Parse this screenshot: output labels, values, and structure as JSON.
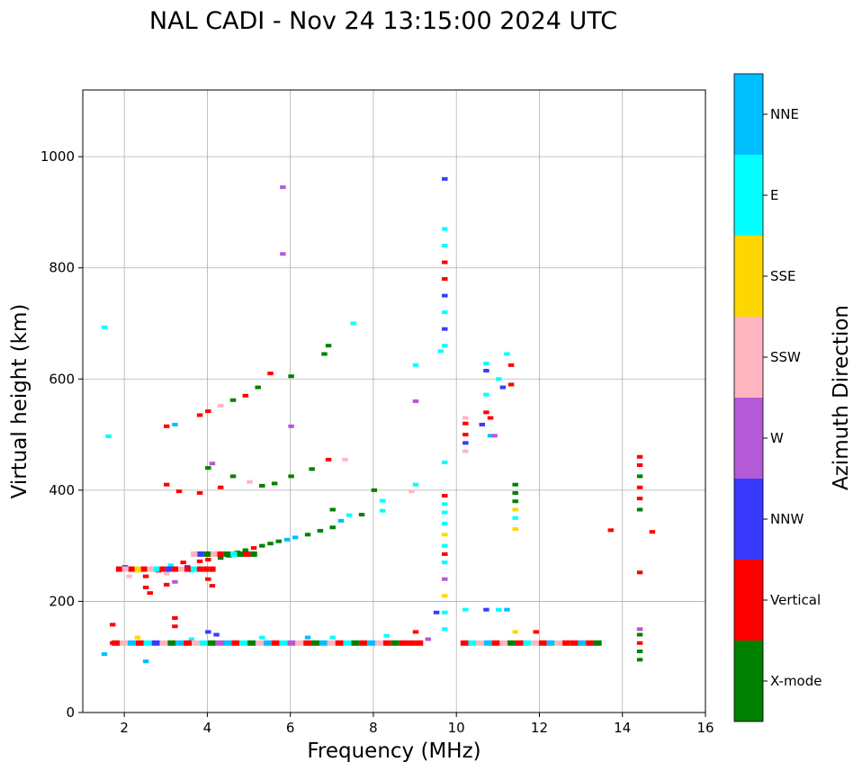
{
  "chart_data": {
    "type": "scatter",
    "title": "NAL CADI - Nov 24 13:15:00 2024 UTC",
    "xlabel": "Frequency (MHz)",
    "ylabel": "Virtual height (km)",
    "xlim": [
      1,
      16
    ],
    "ylim": [
      0,
      1120
    ],
    "xticks": [
      2,
      4,
      6,
      8,
      10,
      12,
      14,
      16
    ],
    "yticks": [
      0,
      200,
      400,
      600,
      800,
      1000
    ],
    "grid": true,
    "colorbar": {
      "label": "Azimuth Direction",
      "categories": [
        {
          "name": "X-mode",
          "color": "#008000"
        },
        {
          "name": "Vertical",
          "color": "#ff0000"
        },
        {
          "name": "NNW",
          "color": "#3a3aff"
        },
        {
          "name": "W",
          "color": "#b45ad6"
        },
        {
          "name": "SSW",
          "color": "#ffb6c1"
        },
        {
          "name": "SSE",
          "color": "#ffd700"
        },
        {
          "name": "E",
          "color": "#00ffff"
        },
        {
          "name": "NNE",
          "color": "#00bfff"
        }
      ]
    },
    "points": [
      {
        "f": 1.5,
        "h": 693,
        "c": "E"
      },
      {
        "f": 1.6,
        "h": 497,
        "c": "E"
      },
      {
        "f": 1.5,
        "h": 105,
        "c": "NNE"
      },
      {
        "f": 1.7,
        "h": 158,
        "c": "Vertical"
      },
      {
        "f": 1.7,
        "h": 125,
        "c": "Vertical"
      },
      {
        "f": 2.0,
        "h": 262,
        "c": "NNW"
      },
      {
        "f": 2.1,
        "h": 245,
        "c": "SSW"
      },
      {
        "f": 2.3,
        "h": 255,
        "c": "SSE"
      },
      {
        "f": 2.5,
        "h": 245,
        "c": "Vertical"
      },
      {
        "f": 2.5,
        "h": 225,
        "c": "Vertical"
      },
      {
        "f": 2.6,
        "h": 215,
        "c": "Vertical"
      },
      {
        "f": 2.8,
        "h": 255,
        "c": "Vertical"
      },
      {
        "f": 3.0,
        "h": 250,
        "c": "SSW"
      },
      {
        "f": 3.0,
        "h": 230,
        "c": "Vertical"
      },
      {
        "f": 3.1,
        "h": 265,
        "c": "E"
      },
      {
        "f": 3.2,
        "h": 258,
        "c": "Vertical"
      },
      {
        "f": 3.2,
        "h": 235,
        "c": "W"
      },
      {
        "f": 3.4,
        "h": 270,
        "c": "Vertical"
      },
      {
        "f": 3.5,
        "h": 262,
        "c": "NNW"
      },
      {
        "f": 3.6,
        "h": 255,
        "c": "E"
      },
      {
        "f": 3.8,
        "h": 272,
        "c": "Vertical"
      },
      {
        "f": 4.0,
        "h": 275,
        "c": "Vertical"
      },
      {
        "f": 4.0,
        "h": 240,
        "c": "Vertical"
      },
      {
        "f": 4.1,
        "h": 228,
        "c": "Vertical"
      },
      {
        "f": 4.2,
        "h": 285,
        "c": "X-mode"
      },
      {
        "f": 4.3,
        "h": 278,
        "c": "X-mode"
      },
      {
        "f": 4.5,
        "h": 282,
        "c": "X-mode"
      },
      {
        "f": 4.7,
        "h": 288,
        "c": "X-mode"
      },
      {
        "f": 4.9,
        "h": 292,
        "c": "X-mode"
      },
      {
        "f": 5.1,
        "h": 296,
        "c": "Vertical"
      },
      {
        "f": 5.3,
        "h": 300,
        "c": "X-mode"
      },
      {
        "f": 5.5,
        "h": 304,
        "c": "X-mode"
      },
      {
        "f": 5.7,
        "h": 308,
        "c": "X-mode"
      },
      {
        "f": 5.9,
        "h": 311,
        "c": "NNE"
      },
      {
        "f": 6.1,
        "h": 315,
        "c": "NNE"
      },
      {
        "f": 6.4,
        "h": 320,
        "c": "X-mode"
      },
      {
        "f": 6.7,
        "h": 327,
        "c": "X-mode"
      },
      {
        "f": 7.0,
        "h": 333,
        "c": "X-mode"
      },
      {
        "f": 7.0,
        "h": 365,
        "c": "X-mode"
      },
      {
        "f": 7.2,
        "h": 345,
        "c": "NNE"
      },
      {
        "f": 7.4,
        "h": 355,
        "c": "E"
      },
      {
        "f": 7.7,
        "h": 356,
        "c": "X-mode"
      },
      {
        "f": 8.2,
        "h": 363,
        "c": "E"
      },
      {
        "f": 8.2,
        "h": 381,
        "c": "E"
      },
      {
        "f": 3.0,
        "h": 410,
        "c": "Vertical"
      },
      {
        "f": 3.3,
        "h": 398,
        "c": "Vertical"
      },
      {
        "f": 3.8,
        "h": 395,
        "c": "Vertical"
      },
      {
        "f": 4.0,
        "h": 440,
        "c": "X-mode"
      },
      {
        "f": 4.1,
        "h": 448,
        "c": "W"
      },
      {
        "f": 4.3,
        "h": 405,
        "c": "Vertical"
      },
      {
        "f": 4.6,
        "h": 425,
        "c": "X-mode"
      },
      {
        "f": 5.0,
        "h": 415,
        "c": "SSW"
      },
      {
        "f": 5.3,
        "h": 408,
        "c": "X-mode"
      },
      {
        "f": 5.6,
        "h": 412,
        "c": "X-mode"
      },
      {
        "f": 6.0,
        "h": 425,
        "c": "X-mode"
      },
      {
        "f": 6.5,
        "h": 438,
        "c": "X-mode"
      },
      {
        "f": 6.9,
        "h": 455,
        "c": "Vertical"
      },
      {
        "f": 7.3,
        "h": 455,
        "c": "SSW"
      },
      {
        "f": 3.0,
        "h": 515,
        "c": "Vertical"
      },
      {
        "f": 3.2,
        "h": 518,
        "c": "NNE"
      },
      {
        "f": 3.8,
        "h": 535,
        "c": "Vertical"
      },
      {
        "f": 4.0,
        "h": 542,
        "c": "Vertical"
      },
      {
        "f": 4.3,
        "h": 552,
        "c": "SSW"
      },
      {
        "f": 4.6,
        "h": 562,
        "c": "X-mode"
      },
      {
        "f": 4.9,
        "h": 570,
        "c": "Vertical"
      },
      {
        "f": 5.2,
        "h": 585,
        "c": "X-mode"
      },
      {
        "f": 5.5,
        "h": 610,
        "c": "Vertical"
      },
      {
        "f": 6.0,
        "h": 605,
        "c": "X-mode"
      },
      {
        "f": 6.0,
        "h": 515,
        "c": "W"
      },
      {
        "f": 5.8,
        "h": 945,
        "c": "W"
      },
      {
        "f": 5.8,
        "h": 825,
        "c": "W"
      },
      {
        "f": 6.8,
        "h": 645,
        "c": "X-mode"
      },
      {
        "f": 6.9,
        "h": 660,
        "c": "X-mode"
      },
      {
        "f": 7.5,
        "h": 700,
        "c": "E"
      },
      {
        "f": 8.0,
        "h": 400,
        "c": "X-mode"
      },
      {
        "f": 9.0,
        "h": 625,
        "c": "E"
      },
      {
        "f": 9.0,
        "h": 560,
        "c": "W"
      },
      {
        "f": 9.0,
        "h": 410,
        "c": "E"
      },
      {
        "f": 8.9,
        "h": 398,
        "c": "SSW"
      },
      {
        "f": 9.7,
        "h": 960,
        "c": "NNW"
      },
      {
        "f": 9.7,
        "h": 870,
        "c": "E"
      },
      {
        "f": 9.7,
        "h": 840,
        "c": "E"
      },
      {
        "f": 9.7,
        "h": 810,
        "c": "Vertical"
      },
      {
        "f": 9.7,
        "h": 780,
        "c": "Vertical"
      },
      {
        "f": 9.7,
        "h": 750,
        "c": "NNW"
      },
      {
        "f": 9.7,
        "h": 720,
        "c": "E"
      },
      {
        "f": 9.7,
        "h": 690,
        "c": "NNW"
      },
      {
        "f": 9.7,
        "h": 660,
        "c": "E"
      },
      {
        "f": 9.6,
        "h": 650,
        "c": "E"
      },
      {
        "f": 9.7,
        "h": 450,
        "c": "E"
      },
      {
        "f": 9.7,
        "h": 390,
        "c": "Vertical"
      },
      {
        "f": 9.7,
        "h": 375,
        "c": "E"
      },
      {
        "f": 9.7,
        "h": 360,
        "c": "E"
      },
      {
        "f": 9.7,
        "h": 340,
        "c": "E"
      },
      {
        "f": 9.7,
        "h": 320,
        "c": "SSE"
      },
      {
        "f": 9.7,
        "h": 300,
        "c": "E"
      },
      {
        "f": 9.7,
        "h": 285,
        "c": "Vertical"
      },
      {
        "f": 9.7,
        "h": 270,
        "c": "E"
      },
      {
        "f": 9.7,
        "h": 240,
        "c": "W"
      },
      {
        "f": 9.7,
        "h": 210,
        "c": "SSE"
      },
      {
        "f": 9.7,
        "h": 180,
        "c": "E"
      },
      {
        "f": 9.7,
        "h": 150,
        "c": "E"
      },
      {
        "f": 9.5,
        "h": 180,
        "c": "NNW"
      },
      {
        "f": 10.2,
        "h": 185,
        "c": "E"
      },
      {
        "f": 10.7,
        "h": 185,
        "c": "NNW"
      },
      {
        "f": 11.0,
        "h": 185,
        "c": "E"
      },
      {
        "f": 11.2,
        "h": 185,
        "c": "NNE"
      },
      {
        "f": 10.2,
        "h": 520,
        "c": "Vertical"
      },
      {
        "f": 10.2,
        "h": 500,
        "c": "Vertical"
      },
      {
        "f": 10.2,
        "h": 485,
        "c": "NNW"
      },
      {
        "f": 10.2,
        "h": 470,
        "c": "SSW"
      },
      {
        "f": 10.2,
        "h": 530,
        "c": "SSW"
      },
      {
        "f": 10.6,
        "h": 518,
        "c": "NNW"
      },
      {
        "f": 10.7,
        "h": 540,
        "c": "Vertical"
      },
      {
        "f": 10.8,
        "h": 530,
        "c": "Vertical"
      },
      {
        "f": 10.7,
        "h": 572,
        "c": "E"
      },
      {
        "f": 10.8,
        "h": 498,
        "c": "NNE"
      },
      {
        "f": 10.9,
        "h": 498,
        "c": "W"
      },
      {
        "f": 11.0,
        "h": 600,
        "c": "E"
      },
      {
        "f": 11.1,
        "h": 585,
        "c": "NNW"
      },
      {
        "f": 11.2,
        "h": 645,
        "c": "E"
      },
      {
        "f": 11.3,
        "h": 625,
        "c": "Vertical"
      },
      {
        "f": 11.3,
        "h": 590,
        "c": "Vertical"
      },
      {
        "f": 10.7,
        "h": 628,
        "c": "E"
      },
      {
        "f": 10.7,
        "h": 615,
        "c": "NNW"
      },
      {
        "f": 11.4,
        "h": 410,
        "c": "X-mode"
      },
      {
        "f": 11.4,
        "h": 395,
        "c": "X-mode"
      },
      {
        "f": 11.4,
        "h": 380,
        "c": "X-mode"
      },
      {
        "f": 11.4,
        "h": 365,
        "c": "SSE"
      },
      {
        "f": 11.4,
        "h": 350,
        "c": "E"
      },
      {
        "f": 11.4,
        "h": 330,
        "c": "SSE"
      },
      {
        "f": 13.7,
        "h": 328,
        "c": "Vertical"
      },
      {
        "f": 14.7,
        "h": 325,
        "c": "Vertical"
      },
      {
        "f": 14.4,
        "h": 252,
        "c": "Vertical"
      },
      {
        "f": 14.4,
        "h": 460,
        "c": "Vertical"
      },
      {
        "f": 14.4,
        "h": 445,
        "c": "Vertical"
      },
      {
        "f": 14.4,
        "h": 425,
        "c": "X-mode"
      },
      {
        "f": 14.4,
        "h": 405,
        "c": "Vertical"
      },
      {
        "f": 14.4,
        "h": 385,
        "c": "Vertical"
      },
      {
        "f": 14.4,
        "h": 365,
        "c": "X-mode"
      },
      {
        "f": 14.4,
        "h": 150,
        "c": "W"
      },
      {
        "f": 14.4,
        "h": 140,
        "c": "X-mode"
      },
      {
        "f": 14.4,
        "h": 125,
        "c": "Vertical"
      },
      {
        "f": 14.4,
        "h": 110,
        "c": "X-mode"
      },
      {
        "f": 14.4,
        "h": 95,
        "c": "X-mode"
      },
      {
        "f": 2.3,
        "h": 135,
        "c": "SSE"
      },
      {
        "f": 2.5,
        "h": 92,
        "c": "NNE"
      },
      {
        "f": 3.2,
        "h": 170,
        "c": "Vertical"
      },
      {
        "f": 3.2,
        "h": 155,
        "c": "Vertical"
      },
      {
        "f": 4.0,
        "h": 145,
        "c": "NNW"
      },
      {
        "f": 4.2,
        "h": 140,
        "c": "NNW"
      },
      {
        "f": 3.6,
        "h": 132,
        "c": "E"
      },
      {
        "f": 5.3,
        "h": 135,
        "c": "E"
      },
      {
        "f": 6.4,
        "h": 135,
        "c": "NNE"
      },
      {
        "f": 7.0,
        "h": 135,
        "c": "E"
      },
      {
        "f": 8.3,
        "h": 138,
        "c": "E"
      },
      {
        "f": 9.0,
        "h": 145,
        "c": "Vertical"
      },
      {
        "f": 11.4,
        "h": 145,
        "c": "SSE"
      },
      {
        "f": 11.9,
        "h": 145,
        "c": "Vertical"
      },
      {
        "f": 9.3,
        "h": 132,
        "c": "W"
      }
    ],
    "segments": [
      {
        "f1": 1.7,
        "f2": 9.2,
        "h": 125,
        "colors": [
          "Vertical",
          "SSW",
          "NNE",
          "Vertical",
          "E",
          "NNW",
          "SSW",
          "X-mode",
          "NNE",
          "Vertical",
          "SSW",
          "E",
          "X-mode",
          "W",
          "NNE",
          "Vertical",
          "E",
          "X-mode",
          "SSW",
          "NNE",
          "Vertical",
          "E",
          "W",
          "SSW",
          "Vertical",
          "X-mode",
          "NNE",
          "SSW",
          "Vertical",
          "E",
          "X-mode",
          "Vertical",
          "NNE",
          "SSW",
          "Vertical",
          "X-mode",
          "Vertical",
          "Vertical",
          "Vertical"
        ]
      },
      {
        "f1": 10.1,
        "f2": 13.5,
        "h": 125,
        "colors": [
          "Vertical",
          "E",
          "SSW",
          "NNE",
          "Vertical",
          "SSW",
          "X-mode",
          "Vertical",
          "E",
          "SSW",
          "Vertical",
          "NNE",
          "SSW",
          "Vertical",
          "Vertical",
          "NNE",
          "Vertical",
          "X-mode"
        ]
      },
      {
        "f1": 1.8,
        "f2": 4.2,
        "h": 258,
        "colors": [
          "Vertical",
          "SSW",
          "Vertical",
          "SSE",
          "Vertical",
          "SSW",
          "E",
          "Vertical",
          "NNW",
          "Vertical",
          "SSW",
          "Vertical",
          "E",
          "Vertical",
          "Vertical",
          "Vertical"
        ]
      },
      {
        "f1": 3.6,
        "f2": 5.2,
        "h": 285,
        "colors": [
          "SSW",
          "NNW",
          "X-mode",
          "SSW",
          "Vertical",
          "X-mode",
          "E",
          "X-mode",
          "Vertical",
          "X-mode"
        ]
      }
    ]
  }
}
